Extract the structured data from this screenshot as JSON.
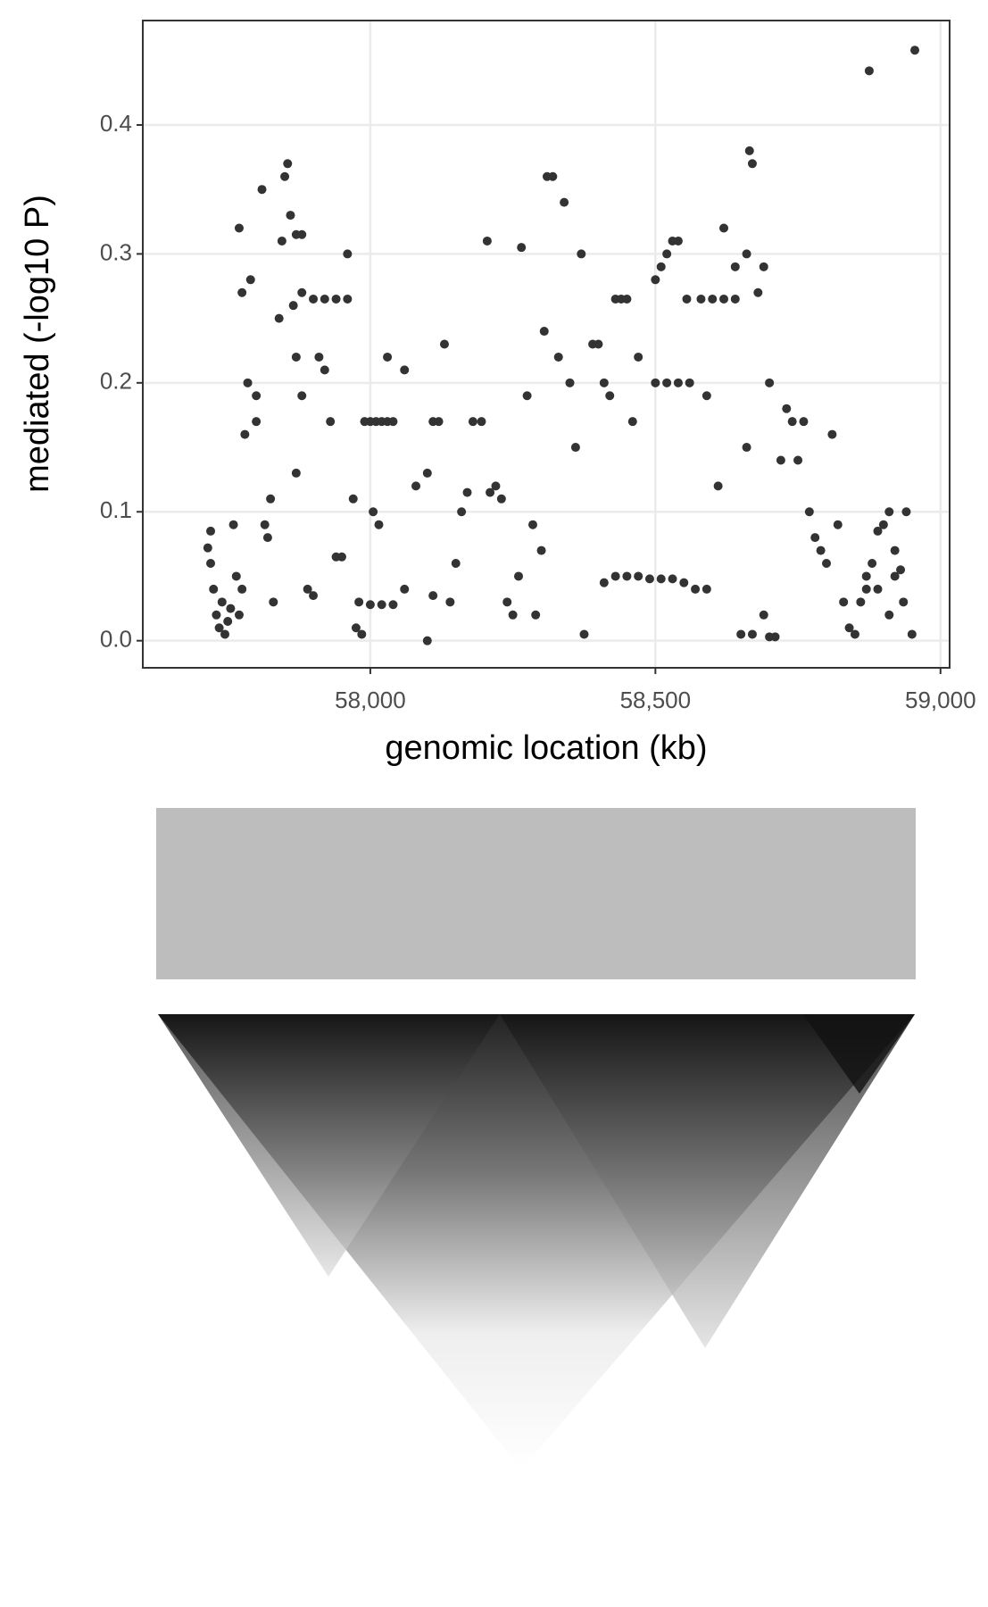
{
  "chart_data": {
    "type": "scatter",
    "x_label": "genomic location (kb)",
    "y_label": "mediated (-log10 P)",
    "color": "#333333",
    "grid": true,
    "xlim": [
      57601,
      59016
    ],
    "ylim": [
      -0.021,
      0.481
    ],
    "xticks": [
      {
        "value": 58000,
        "label": "58,000"
      },
      {
        "value": 58500,
        "label": "58,500"
      },
      {
        "value": 59000,
        "label": "59,000"
      }
    ],
    "yticks": [
      {
        "value": 0,
        "label": "0.0"
      },
      0.1,
      0.2,
      0.3,
      0.4
    ],
    "x": [
      57715,
      57720,
      57725,
      57730,
      57735,
      57740,
      57745,
      57750,
      57755,
      57720,
      57760,
      57765,
      57770,
      57775,
      57780,
      57785,
      57775,
      57770,
      57790,
      57800,
      57810,
      57800,
      57815,
      57820,
      57825,
      57830,
      57840,
      57845,
      57850,
      57855,
      57860,
      57865,
      57870,
      57880,
      57900,
      57920,
      57940,
      57960,
      57870,
      57880,
      57870,
      57880,
      57890,
      57900,
      57910,
      57920,
      57930,
      57940,
      57950,
      57960,
      57970,
      57975,
      57980,
      57990,
      58000,
      58010,
      58020,
      58030,
      58040,
      58000,
      58020,
      58040,
      57985,
      58005,
      58015,
      58030,
      58060,
      58060,
      58080,
      58100,
      58110,
      58120,
      58130,
      58100,
      58110,
      58140,
      58150,
      58160,
      58170,
      58180,
      58195,
      58205,
      58210,
      58220,
      58230,
      58240,
      58250,
      58260,
      58265,
      58275,
      58285,
      58290,
      58300,
      58305,
      58310,
      58320,
      58330,
      58340,
      58350,
      58360,
      58370,
      58375,
      58390,
      58400,
      58410,
      58420,
      58430,
      58440,
      58450,
      58460,
      58470,
      58410,
      58430,
      58450,
      58470,
      58490,
      58510,
      58530,
      58550,
      58570,
      58590,
      58500,
      58520,
      58540,
      58500,
      58510,
      58520,
      58530,
      58540,
      58555,
      58580,
      58600,
      58620,
      58640,
      58560,
      58590,
      58610,
      58620,
      58640,
      58660,
      58665,
      58670,
      58680,
      58690,
      58700,
      58660,
      58650,
      58670,
      58690,
      58700,
      58710,
      58720,
      58730,
      58740,
      58750,
      58760,
      58770,
      58780,
      58790,
      58800,
      58810,
      58820,
      58830,
      58840,
      58850,
      58860,
      58870,
      58880,
      58890,
      58900,
      58910,
      58920,
      58930,
      58935,
      58940,
      58950,
      58875,
      58955,
      58870,
      58890,
      58910,
      58920
    ],
    "values": [
      0.072,
      0.06,
      0.04,
      0.02,
      0.01,
      0.03,
      0.005,
      0.015,
      0.025,
      0.085,
      0.09,
      0.05,
      0.02,
      0.04,
      0.16,
      0.2,
      0.27,
      0.32,
      0.28,
      0.19,
      0.35,
      0.17,
      0.09,
      0.08,
      0.11,
      0.03,
      0.25,
      0.31,
      0.36,
      0.37,
      0.33,
      0.26,
      0.22,
      0.27,
      0.265,
      0.265,
      0.265,
      0.265,
      0.315,
      0.315,
      0.13,
      0.19,
      0.04,
      0.035,
      0.22,
      0.21,
      0.17,
      0.065,
      0.065,
      0.3,
      0.11,
      0.01,
      0.03,
      0.17,
      0.17,
      0.17,
      0.17,
      0.17,
      0.17,
      0.028,
      0.028,
      0.028,
      0.005,
      0.1,
      0.09,
      0.22,
      0.21,
      0.04,
      0.12,
      0.13,
      0.17,
      0.17,
      0.23,
      0.0,
      0.035,
      0.03,
      0.06,
      0.1,
      0.115,
      0.17,
      0.17,
      0.31,
      0.115,
      0.12,
      0.11,
      0.03,
      0.02,
      0.05,
      0.305,
      0.19,
      0.09,
      0.02,
      0.07,
      0.24,
      0.36,
      0.36,
      0.22,
      0.34,
      0.2,
      0.15,
      0.3,
      0.005,
      0.23,
      0.23,
      0.2,
      0.19,
      0.265,
      0.265,
      0.265,
      0.17,
      0.22,
      0.045,
      0.05,
      0.05,
      0.05,
      0.048,
      0.048,
      0.048,
      0.045,
      0.04,
      0.04,
      0.2,
      0.2,
      0.2,
      0.28,
      0.29,
      0.3,
      0.31,
      0.31,
      0.265,
      0.265,
      0.265,
      0.265,
      0.265,
      0.2,
      0.19,
      0.12,
      0.32,
      0.29,
      0.3,
      0.38,
      0.37,
      0.27,
      0.29,
      0.2,
      0.15,
      0.005,
      0.005,
      0.02,
      0.003,
      0.003,
      0.14,
      0.18,
      0.17,
      0.14,
      0.17,
      0.1,
      0.08,
      0.07,
      0.06,
      0.16,
      0.09,
      0.03,
      0.01,
      0.005,
      0.03,
      0.05,
      0.06,
      0.085,
      0.09,
      0.1,
      0.05,
      0.055,
      0.03,
      0.1,
      0.005,
      0.442,
      0.458,
      0.04,
      0.04,
      0.02,
      0.07
    ]
  }
}
